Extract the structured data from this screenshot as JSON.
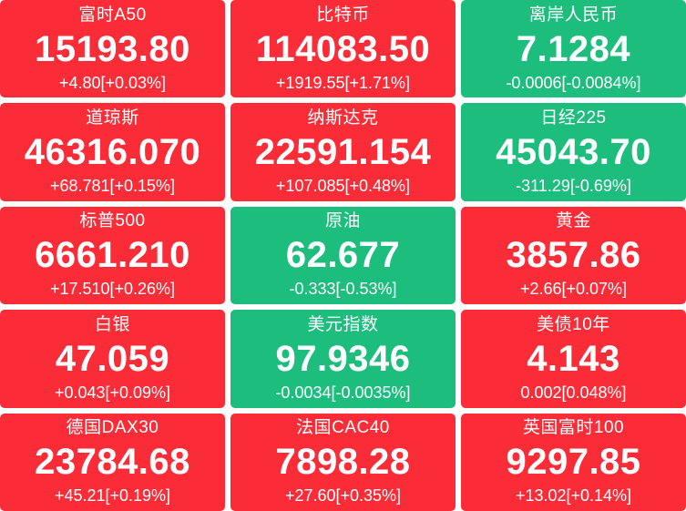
{
  "colors": {
    "up_background": "#fa2c38",
    "down_background": "#1dbd7e",
    "text": "#ffffff",
    "gap": "#ffffff"
  },
  "market_board": {
    "tiles": [
      {
        "name": "富时A50",
        "value": "15193.80",
        "change": "+4.80[+0.03%]",
        "direction": "up"
      },
      {
        "name": "比特币",
        "value": "114083.50",
        "change": "+1919.55[+1.71%]",
        "direction": "up"
      },
      {
        "name": "离岸人民币",
        "value": "7.1284",
        "change": "-0.0006[-0.0084%]",
        "direction": "down"
      },
      {
        "name": "道琼斯",
        "value": "46316.070",
        "change": "+68.781[+0.15%]",
        "direction": "up"
      },
      {
        "name": "纳斯达克",
        "value": "22591.154",
        "change": "+107.085[+0.48%]",
        "direction": "up"
      },
      {
        "name": "日经225",
        "value": "45043.70",
        "change": "-311.29[-0.69%]",
        "direction": "down"
      },
      {
        "name": "标普500",
        "value": "6661.210",
        "change": "+17.510[+0.26%]",
        "direction": "up"
      },
      {
        "name": "原油",
        "value": "62.677",
        "change": "-0.333[-0.53%]",
        "direction": "down"
      },
      {
        "name": "黄金",
        "value": "3857.86",
        "change": "+2.66[+0.07%]",
        "direction": "up"
      },
      {
        "name": "白银",
        "value": "47.059",
        "change": "+0.043[+0.09%]",
        "direction": "up"
      },
      {
        "name": "美元指数",
        "value": "97.9346",
        "change": "-0.0034[-0.0035%]",
        "direction": "down"
      },
      {
        "name": "美债10年",
        "value": "4.143",
        "change": "0.002[0.048%]",
        "direction": "up"
      },
      {
        "name": "德国DAX30",
        "value": "23784.68",
        "change": "+45.21[+0.19%]",
        "direction": "up"
      },
      {
        "name": "法国CAC40",
        "value": "7898.28",
        "change": "+27.60[+0.35%]",
        "direction": "up"
      },
      {
        "name": "英国富时100",
        "value": "9297.85",
        "change": "+13.02[+0.14%]",
        "direction": "up"
      }
    ]
  }
}
